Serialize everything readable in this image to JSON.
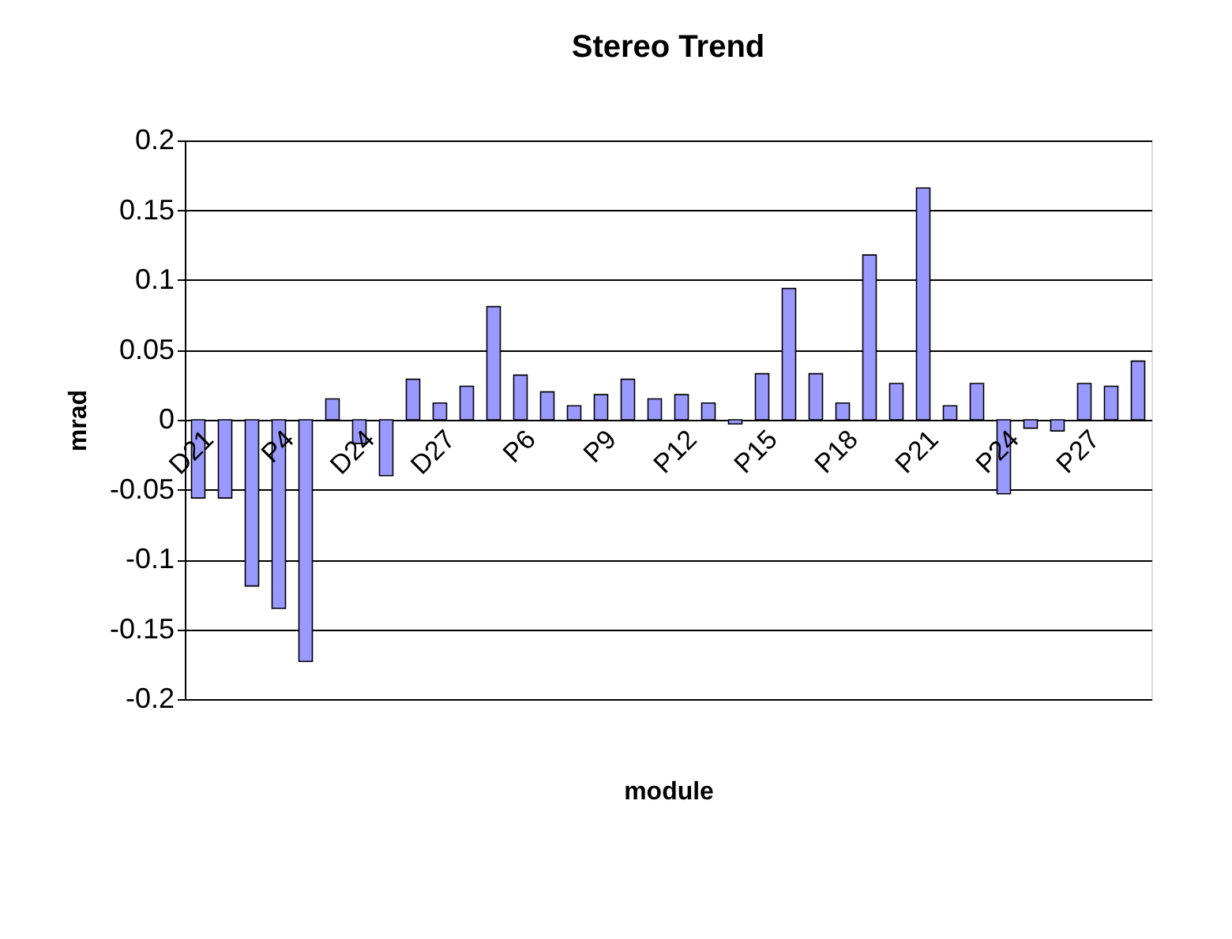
{
  "chart_data": {
    "type": "bar",
    "title": "Stereo Trend",
    "xlabel": "module",
    "ylabel": "mrad",
    "categories": [
      "D21",
      null,
      null,
      "P4",
      null,
      null,
      "D24",
      null,
      null,
      "D27",
      null,
      null,
      "P6",
      null,
      null,
      "P9",
      null,
      null,
      "P12",
      null,
      null,
      "P15",
      null,
      null,
      "P18",
      null,
      null,
      "P21",
      null,
      null,
      "P24",
      null,
      null,
      "P27",
      null,
      null
    ],
    "values": [
      -0.056,
      -0.056,
      -0.119,
      -0.135,
      -0.173,
      0.015,
      -0.017,
      -0.04,
      0.029,
      0.012,
      0.024,
      0.081,
      0.032,
      0.02,
      0.01,
      0.018,
      0.029,
      0.015,
      0.018,
      0.012,
      -0.003,
      0.033,
      0.094,
      0.033,
      0.012,
      0.118,
      0.026,
      0.166,
      0.01,
      0.026,
      -0.053,
      -0.006,
      -0.008,
      0.026,
      0.024,
      0.042
    ],
    "color": "#9999ff",
    "ylim": [
      -0.2,
      0.2
    ],
    "yticks": [
      -0.2,
      -0.15,
      -0.1,
      -0.05,
      0,
      0.05,
      0.1,
      0.15,
      0.2
    ],
    "grid": "y"
  }
}
